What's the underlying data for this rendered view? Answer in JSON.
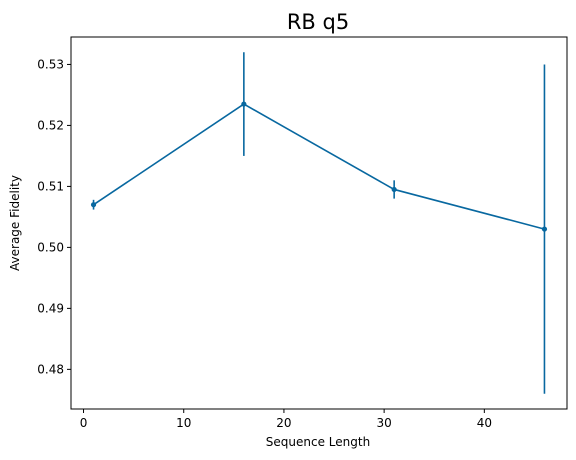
{
  "chart_data": {
    "type": "line",
    "title": "RB q5",
    "xlabel": "Sequence Length",
    "ylabel": "Average Fidelity",
    "xlim": [
      -1.25,
      48.25
    ],
    "ylim": [
      0.4735,
      0.5345
    ],
    "xticks": [
      0,
      10,
      20,
      30,
      40
    ],
    "xtick_labels": [
      "0",
      "10",
      "20",
      "30",
      "40"
    ],
    "yticks": [
      0.48,
      0.49,
      0.5,
      0.51,
      0.52,
      0.53
    ],
    "ytick_labels": [
      "0.48",
      "0.49",
      "0.50",
      "0.51",
      "0.52",
      "0.53"
    ],
    "grid": false,
    "color": "#0868a0",
    "series": [
      {
        "x": [
          1,
          16,
          31,
          46
        ],
        "y": [
          0.507,
          0.5235,
          0.5095,
          0.503
        ],
        "yerr": [
          0.0008,
          0.0085,
          0.0015,
          0.027
        ]
      }
    ]
  }
}
